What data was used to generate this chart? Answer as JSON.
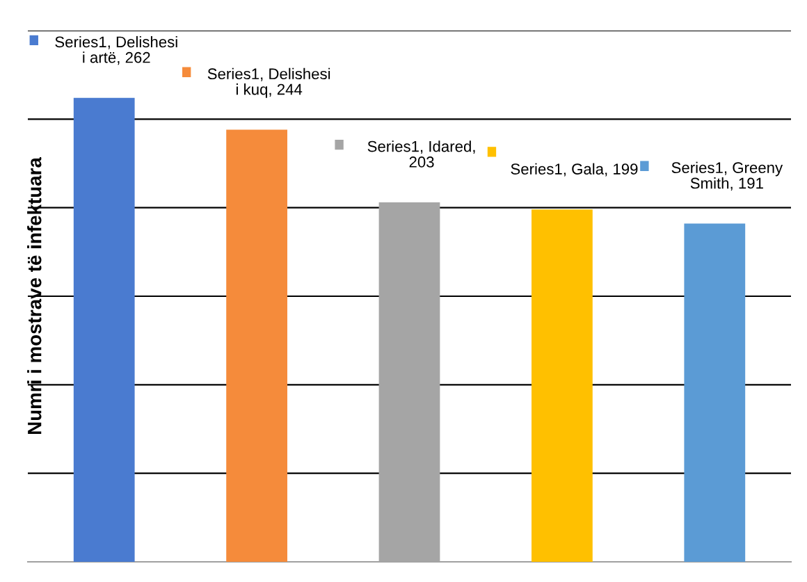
{
  "chart_data": {
    "type": "bar",
    "ylabel": "Numri i mostrave të infektuara",
    "categories": [
      null,
      null,
      null,
      null,
      null
    ],
    "series": [
      {
        "values": [
          262,
          244,
          203,
          199,
          191
        ],
        "colors": [
          "#4a7bd0",
          "#f58b3b",
          "#a5a5a5",
          "#ffc000",
          "#5b9bd5"
        ],
        "value_labels": [
          "Series1, Delishesi i artë, 262",
          "Series1, Delishesi i kuq, 244",
          "Series1, Idared, 203",
          "Series1, Gala, 199",
          "Series1, Greeny Smith, 191"
        ]
      }
    ],
    "ylim": [
      0,
      300
    ],
    "yticks": [
      {
        "value": 0,
        "label": null
      },
      {
        "value": 50,
        "label": null
      },
      {
        "value": 100,
        "label": null
      },
      {
        "value": 150,
        "label": null
      },
      {
        "value": 200,
        "label": null
      },
      {
        "value": 250,
        "label": null
      },
      {
        "value": 300,
        "label": null
      }
    ],
    "grid": "y",
    "tick_labels": false
  }
}
